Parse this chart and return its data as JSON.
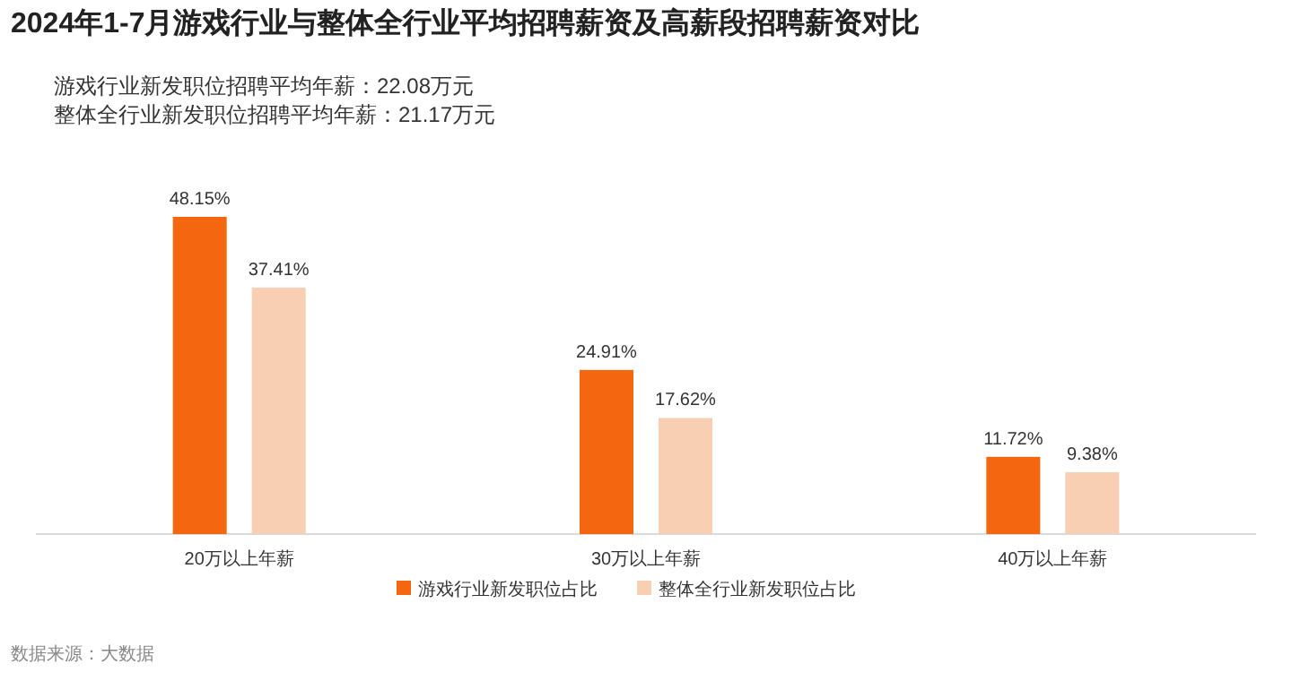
{
  "chart_data": {
    "type": "bar",
    "title": "2024年1-7月游戏行业与整体全行业平均招聘薪资及高薪段招聘薪资对比",
    "annotations": [
      "游戏行业新发职位招聘平均年薪：22.08万元",
      "整体全行业新发职位招聘平均年薪：21.17万元",
      "数据来源：大数据"
    ],
    "categories": [
      "20万以上年薪",
      "30万以上年薪",
      "40万以上年薪"
    ],
    "series": [
      {
        "name": "游戏行业新发职位占比",
        "color": "#f4670f",
        "values": [
          48.15,
          24.91,
          11.72
        ],
        "value_labels": [
          "48.15%",
          "24.91%",
          "11.72%"
        ]
      },
      {
        "name": "整体全行业新发职位占比",
        "color": "#f8cfb2",
        "values": [
          37.41,
          17.62,
          9.38
        ],
        "value_labels": [
          "37.41%",
          "17.62%",
          "9.38%"
        ]
      }
    ],
    "legend": "bottom"
  }
}
